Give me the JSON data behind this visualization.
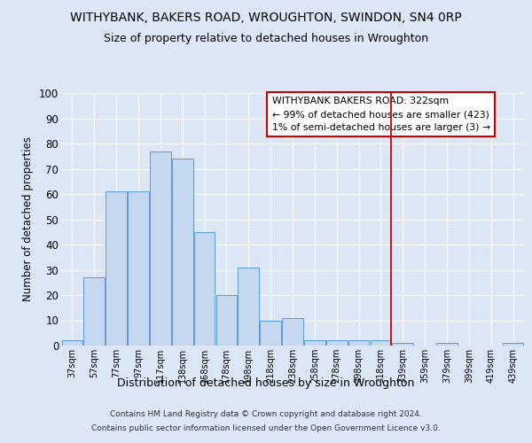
{
  "title1": "WITHYBANK, BAKERS ROAD, WROUGHTON, SWINDON, SN4 0RP",
  "title2": "Size of property relative to detached houses in Wroughton",
  "xlabel": "Distribution of detached houses by size in Wroughton",
  "ylabel": "Number of detached properties",
  "bar_labels": [
    "37sqm",
    "57sqm",
    "77sqm",
    "97sqm",
    "117sqm",
    "138sqm",
    "158sqm",
    "178sqm",
    "198sqm",
    "218sqm",
    "238sqm",
    "258sqm",
    "278sqm",
    "298sqm",
    "318sqm",
    "339sqm",
    "359sqm",
    "379sqm",
    "399sqm",
    "419sqm",
    "439sqm"
  ],
  "bar_heights": [
    2,
    27,
    61,
    61,
    77,
    74,
    45,
    20,
    31,
    10,
    11,
    2,
    2,
    2,
    2,
    1,
    0,
    1,
    0,
    0,
    1
  ],
  "bar_color": "#c5d8f0",
  "bar_edge_color": "#5b9bd5",
  "background_color": "#dce6f5",
  "grid_color": "#ffffff",
  "red_line_index": 14,
  "red_line_color": "#cc0000",
  "annotation_title": "WITHYBANK BAKERS ROAD: 322sqm",
  "annotation_line1": "← 99% of detached houses are smaller (423)",
  "annotation_line2": "1% of semi-detached houses are larger (3) →",
  "annotation_box_color": "#ffffff",
  "annotation_border_color": "#cc0000",
  "ylim": [
    0,
    100
  ],
  "yticks": [
    0,
    10,
    20,
    30,
    40,
    50,
    60,
    70,
    80,
    90,
    100
  ],
  "footer1": "Contains HM Land Registry data © Crown copyright and database right 2024.",
  "footer2": "Contains public sector information licensed under the Open Government Licence v3.0."
}
